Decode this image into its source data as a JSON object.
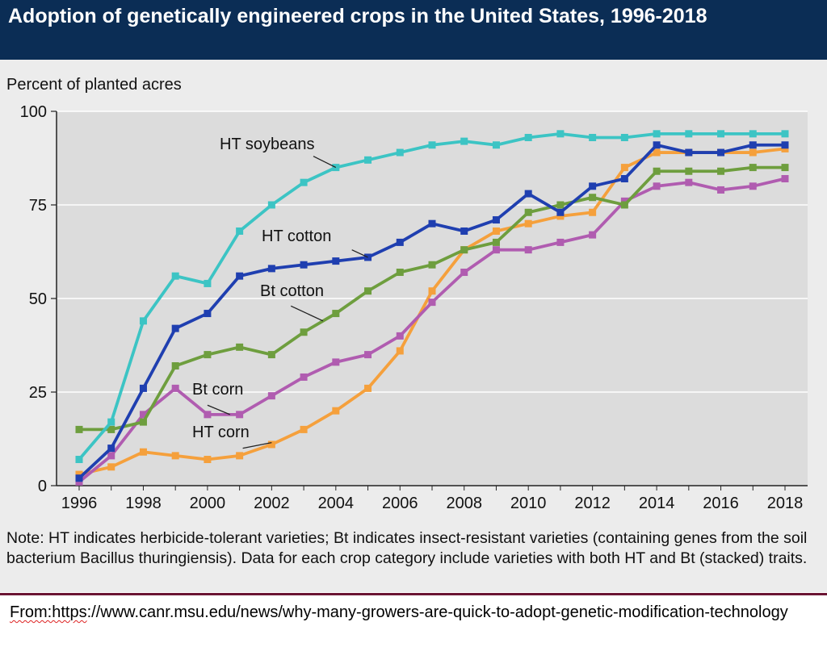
{
  "colors": {
    "title_background": "#0b2d55",
    "panel_background": "#ececec",
    "plot_background": "#dcdcdc",
    "grid": "#ffffff",
    "source_rule": "#6b1533"
  },
  "chart_data": {
    "type": "line",
    "title": "Adoption of genetically engineered crops in the United States, 1996-2018",
    "ylabel": "Percent of planted acres",
    "xlabel": "",
    "x": [
      1996,
      1997,
      1998,
      1999,
      2000,
      2001,
      2002,
      2003,
      2004,
      2005,
      2006,
      2007,
      2008,
      2009,
      2010,
      2011,
      2012,
      2013,
      2014,
      2015,
      2016,
      2017,
      2018
    ],
    "xlim": [
      1996,
      2018
    ],
    "ylim": [
      0,
      100
    ],
    "x_ticks": [
      "1996",
      "1998",
      "2000",
      "2002",
      "2004",
      "2006",
      "2008",
      "2010",
      "2012",
      "2014",
      "2016",
      "2018"
    ],
    "y_ticks": [
      "0",
      "25",
      "50",
      "75",
      "100"
    ],
    "grid": true,
    "legend": "inline labels",
    "series": [
      {
        "name": "HT soybeans",
        "color": "#3cc4c4",
        "values": [
          7,
          17,
          44,
          56,
          54,
          68,
          75,
          81,
          85,
          87,
          89,
          91,
          92,
          91,
          93,
          94,
          93,
          93,
          94,
          94,
          94,
          94,
          94
        ]
      },
      {
        "name": "HT cotton",
        "color": "#1f3fb0",
        "values": [
          2,
          10,
          26,
          42,
          46,
          56,
          58,
          59,
          60,
          61,
          65,
          70,
          68,
          71,
          78,
          73,
          80,
          82,
          91,
          89,
          89,
          91,
          91
        ]
      },
      {
        "name": "Bt cotton",
        "color": "#6e9e3e",
        "values": [
          15,
          15,
          17,
          32,
          35,
          37,
          35,
          41,
          46,
          52,
          57,
          59,
          63,
          65,
          73,
          75,
          77,
          75,
          84,
          84,
          84,
          85,
          85
        ]
      },
      {
        "name": "Bt corn",
        "color": "#b05cb0",
        "values": [
          1,
          8,
          19,
          26,
          19,
          19,
          24,
          29,
          33,
          35,
          40,
          49,
          57,
          63,
          63,
          65,
          67,
          76,
          80,
          81,
          79,
          80,
          82
        ]
      },
      {
        "name": "HT corn",
        "color": "#f5a03c",
        "values": [
          3,
          5,
          9,
          8,
          7,
          8,
          11,
          15,
          20,
          26,
          36,
          52,
          63,
          68,
          70,
          72,
          73,
          85,
          89,
          89,
          89,
          89,
          90
        ]
      }
    ]
  },
  "note": "Note: HT indicates herbicide-tolerant varieties; Bt indicates insect-resistant varieties (containing genes from the soil bacterium Bacillus thuringiensis). Data for each crop category include varieties with both HT and Bt (stacked) traits.",
  "source": {
    "prefix": "From:https",
    "url_rest": "://www.canr.msu.edu/news/why-many-growers-are-quick-to-adopt-genetic-modification-technology"
  }
}
